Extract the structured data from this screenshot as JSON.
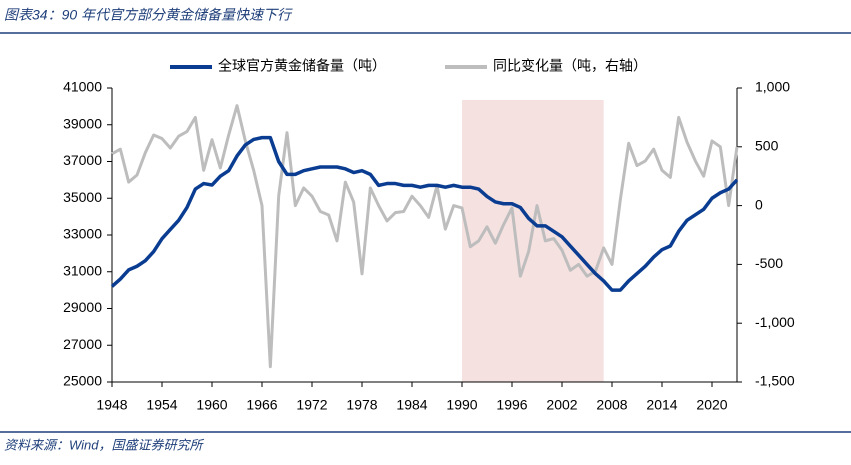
{
  "chart_data": {
    "type": "line",
    "title": "图表34：90 年代官方部分黄金储备量快速下行",
    "source": "资料来源：Wind，国盛证券研究所",
    "x": [
      1948,
      1949,
      1950,
      1951,
      1952,
      1953,
      1954,
      1955,
      1956,
      1957,
      1958,
      1959,
      1960,
      1961,
      1962,
      1963,
      1964,
      1965,
      1966,
      1967,
      1968,
      1969,
      1970,
      1971,
      1972,
      1973,
      1974,
      1975,
      1976,
      1977,
      1978,
      1979,
      1980,
      1981,
      1982,
      1983,
      1984,
      1985,
      1986,
      1987,
      1988,
      1989,
      1990,
      1991,
      1992,
      1993,
      1994,
      1995,
      1996,
      1997,
      1998,
      1999,
      2000,
      2001,
      2002,
      2003,
      2004,
      2005,
      2006,
      2007,
      2008,
      2009,
      2010,
      2011,
      2012,
      2013,
      2014,
      2015,
      2016,
      2017,
      2018,
      2019,
      2020,
      2021,
      2022,
      2023
    ],
    "series": [
      {
        "name": "全球官方黄金储备量（吨）",
        "color": "#0a3d91",
        "values": [
          30200,
          30600,
          31100,
          31300,
          31600,
          32100,
          32800,
          33300,
          33800,
          34500,
          35500,
          35800,
          35720,
          36200,
          36500,
          37300,
          37900,
          38200,
          38300,
          38300,
          37000,
          36300,
          36300,
          36500,
          36600,
          36700,
          36700,
          36700,
          36600,
          36400,
          36500,
          36300,
          35700,
          35800,
          35800,
          35700,
          35700,
          35600,
          35700,
          35700,
          35600,
          35700,
          35600,
          35600,
          35500,
          35100,
          34800,
          34700,
          34700,
          34500,
          33900,
          33500,
          33500,
          33200,
          32900,
          32400,
          31900,
          31400,
          30900,
          30500,
          30000,
          30000,
          30500,
          30900,
          31300,
          31800,
          32200,
          32400,
          33200,
          33800,
          34100,
          34400,
          35000,
          35300,
          35500,
          36000
        ]
      },
      {
        "name": "同比变化量（吨，右轴）",
        "color": "#bdbdbd",
        "axis": "y2",
        "values": [
          440,
          480,
          200,
          260,
          450,
          600,
          570,
          490,
          590,
          630,
          750,
          300,
          560,
          320,
          600,
          850,
          550,
          300,
          0,
          -1370,
          80,
          620,
          0,
          150,
          80,
          -50,
          -80,
          -300,
          200,
          30,
          -580,
          150,
          0,
          -130,
          -60,
          -50,
          80,
          0,
          -100,
          170,
          -200,
          0,
          -20,
          -350,
          -300,
          -180,
          -320,
          -160,
          -20,
          -600,
          -390,
          0,
          -300,
          -280,
          -380,
          -550,
          -500,
          -600,
          -560,
          -360,
          -500,
          50,
          530,
          340,
          380,
          480,
          300,
          240,
          750,
          540,
          380,
          250,
          550,
          500,
          0,
          500
        ]
      }
    ],
    "shade": [
      1990,
      2007
    ],
    "shade_color": "#f6e1e1",
    "xlim": [
      1948,
      2023
    ],
    "xticks": [
      1948,
      1954,
      1960,
      1966,
      1972,
      1978,
      1984,
      1990,
      1996,
      2002,
      2008,
      2014,
      2020
    ],
    "ylim": [
      25000,
      41000
    ],
    "yticks": [
      25000,
      27000,
      29000,
      31000,
      33000,
      35000,
      37000,
      39000,
      41000
    ],
    "y2lim": [
      -1500,
      1000
    ],
    "y2ticks": [
      {
        "value": -1500,
        "label": "-1,500"
      },
      {
        "value": -1000,
        "label": "-1,000"
      },
      -500,
      0,
      500,
      {
        "value": 1000,
        "label": "1,000"
      }
    ],
    "grid": false,
    "legend": "top"
  }
}
